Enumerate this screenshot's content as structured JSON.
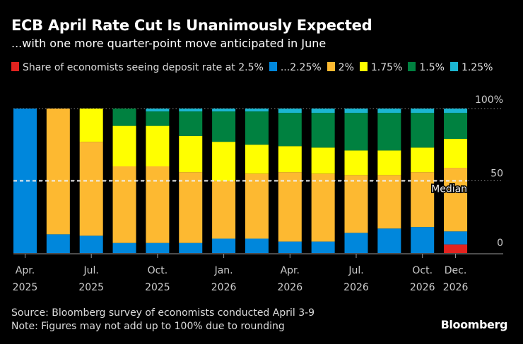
{
  "chart_data": {
    "type": "bar",
    "stacked": true,
    "title": "ECB April Rate Cut Is Unanimously Expected",
    "subtitle": "...with one more quarter-point move anticipated in June",
    "categories": [
      "Apr. 2025",
      "",
      "Jul. 2025",
      "",
      "Oct. 2025",
      "",
      "Jan. 2026",
      "",
      "Apr. 2026",
      "",
      "Jul. 2026",
      "",
      "Oct. 2026",
      "Dec. 2026"
    ],
    "x_ticks": [
      {
        "index": 0,
        "line1": "Apr.",
        "line2": "2025"
      },
      {
        "index": 2,
        "line1": "Jul.",
        "line2": "2025"
      },
      {
        "index": 4,
        "line1": "Oct.",
        "line2": "2025"
      },
      {
        "index": 6,
        "line1": "Jan.",
        "line2": "2026"
      },
      {
        "index": 8,
        "line1": "Apr.",
        "line2": "2026"
      },
      {
        "index": 10,
        "line1": "Jul.",
        "line2": "2026"
      },
      {
        "index": 12,
        "line1": "Oct.",
        "line2": "2026"
      },
      {
        "index": 13,
        "line1": "Dec.",
        "line2": "2026"
      }
    ],
    "y_ticks": [
      {
        "value": 0,
        "label": "0"
      },
      {
        "value": 50,
        "label": "50"
      },
      {
        "value": 100,
        "label": "100%"
      }
    ],
    "ylim": [
      0,
      100
    ],
    "y_axis_side": "right",
    "median_line": {
      "value": 50,
      "label": "Median"
    },
    "legend_placement": "top",
    "series": [
      {
        "name": "Share of economists seeing deposit rate at 2.5%",
        "color": "#e3231f",
        "values": [
          0,
          0,
          0,
          0,
          0,
          0,
          0,
          0,
          0,
          0,
          0,
          0,
          0,
          6
        ]
      },
      {
        "name": "...2.25%",
        "color": "#0087dc",
        "values": [
          100,
          13,
          12,
          7,
          7,
          7,
          10,
          10,
          8,
          8,
          14,
          17,
          18,
          9
        ]
      },
      {
        "name": "2%",
        "color": "#fdb931",
        "values": [
          0,
          87,
          65,
          53,
          53,
          49,
          40,
          45,
          48,
          47,
          40,
          37,
          38,
          44
        ]
      },
      {
        "name": "1.75%",
        "color": "#ffff00",
        "values": [
          0,
          0,
          23,
          28,
          28,
          25,
          27,
          20,
          18,
          18,
          17,
          17,
          17,
          20
        ]
      },
      {
        "name": "1.5%",
        "color": "#008140",
        "values": [
          0,
          0,
          0,
          12,
          10,
          17,
          21,
          23,
          23,
          24,
          26,
          26,
          24,
          18
        ]
      },
      {
        "name": "1.25%",
        "color": "#1bb6d2",
        "values": [
          0,
          0,
          0,
          0,
          2,
          2,
          2,
          2,
          3,
          3,
          3,
          3,
          3,
          3
        ]
      }
    ]
  },
  "footer": {
    "source": "Source: Bloomberg survey of economists conducted April 3-9",
    "note": "Note: Figures may not add up to 100% due to rounding",
    "logo": "Bloomberg"
  }
}
